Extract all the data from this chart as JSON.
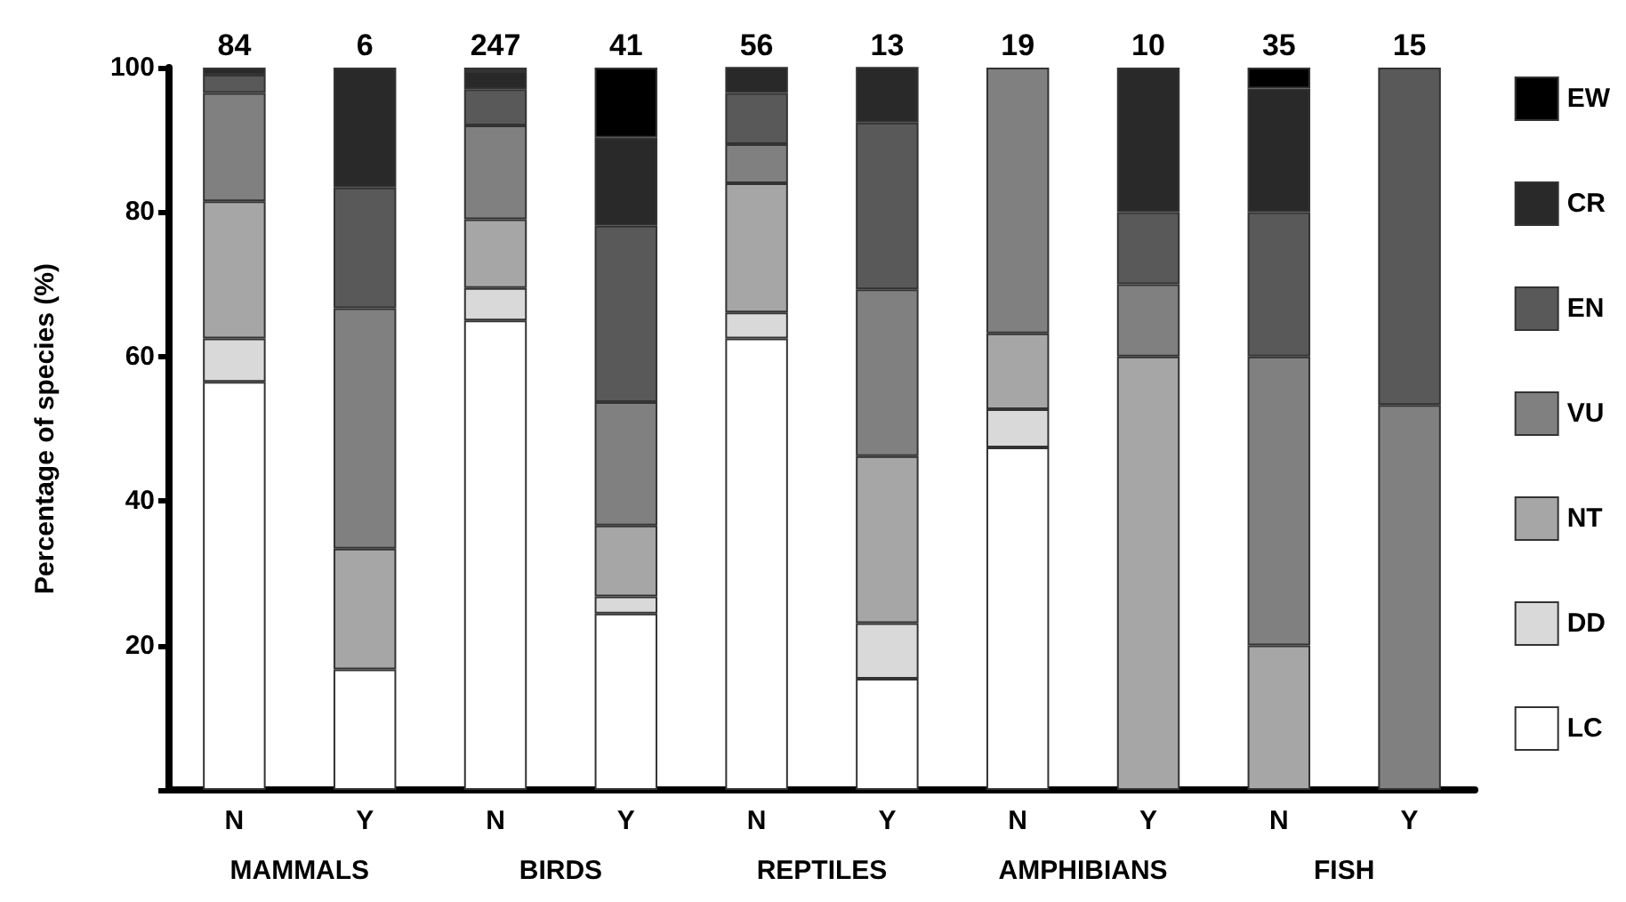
{
  "chart_data": {
    "type": "bar",
    "stacked": true,
    "ylabel": "Percentage of species (%)",
    "categories": [
      "N",
      "Y",
      "N",
      "Y",
      "N",
      "Y",
      "N",
      "Y",
      "N",
      "Y"
    ],
    "annotations": [
      "84",
      "6",
      "247",
      "41",
      "56",
      "13",
      "19",
      "10",
      "35",
      "15",
      "MAMMALS",
      "BIRDS",
      "REPTILES",
      "AMPHIBIANS",
      "FISH"
    ],
    "series": [
      {
        "name": "LC",
        "color": "#ffffff",
        "values": [
          56.5,
          16.7,
          65,
          24.4,
          62.5,
          15.4,
          47.4,
          null,
          null,
          null
        ]
      },
      {
        "name": "DD",
        "color": "#d9d9d9",
        "values": [
          6,
          null,
          4.5,
          2.4,
          3.6,
          7.7,
          5.3,
          null,
          null,
          null
        ]
      },
      {
        "name": "NT",
        "color": "#a6a6a6",
        "values": [
          19,
          16.7,
          9.5,
          9.8,
          17.9,
          23.1,
          10.5,
          60,
          20,
          null
        ]
      },
      {
        "name": "VU",
        "color": "#808080",
        "values": [
          15,
          33.3,
          13,
          17.1,
          5.4,
          23.1,
          36.8,
          10,
          40,
          53.3
        ]
      },
      {
        "name": "EN",
        "color": "#595959",
        "values": [
          2.5,
          16.7,
          5,
          24.4,
          7.1,
          23.1,
          null,
          10,
          20,
          46.7
        ]
      },
      {
        "name": "CR",
        "color": "#292929",
        "values": [
          1,
          16.6,
          2.5,
          12.2,
          3.6,
          7.7,
          null,
          20,
          17.1,
          null
        ]
      },
      {
        "name": "EW",
        "color": "#000000",
        "values": [
          null,
          null,
          0.5,
          9.7,
          null,
          null,
          null,
          null,
          2.9,
          null
        ]
      }
    ],
    "ylim": [
      0,
      100
    ],
    "yticks": [
      {
        "value": 0,
        "label": null
      },
      20,
      40,
      60,
      80,
      100
    ],
    "grid": false,
    "legend": "right"
  }
}
